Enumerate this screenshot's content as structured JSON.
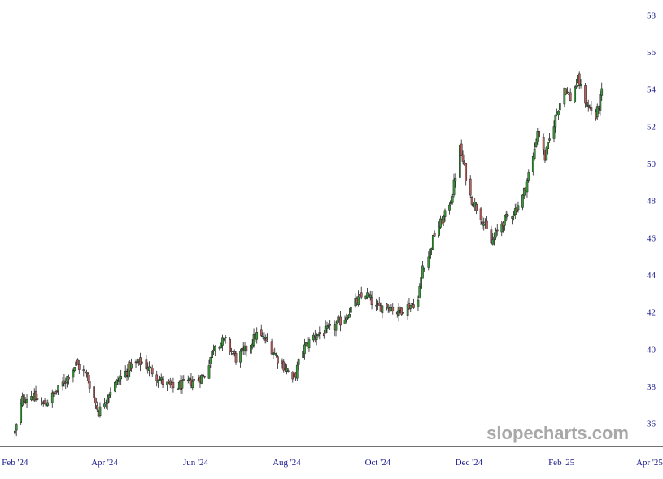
{
  "chart_data": {
    "type": "candlestick",
    "y_axis": {
      "position": "right",
      "range": [
        34.8,
        58.8
      ],
      "ticks": [
        "58",
        "56",
        "54",
        "52",
        "50",
        "48",
        "46",
        "44",
        "42",
        "40",
        "38",
        "36"
      ]
    },
    "x_axis": {
      "range": [
        "2024-01-22",
        "2025-04-10"
      ],
      "ticks": [
        {
          "date": "2024-02-01",
          "label": "Feb '24"
        },
        {
          "date": "2024-04-01",
          "label": "Apr '24"
        },
        {
          "date": "2024-06-01",
          "label": "Jun '24"
        },
        {
          "date": "2024-08-01",
          "label": "Aug '24"
        },
        {
          "date": "2024-10-01",
          "label": "Oct '24"
        },
        {
          "date": "2024-12-01",
          "label": "Dec '24"
        },
        {
          "date": "2025-02-01",
          "label": "Feb '25"
        },
        {
          "date": "2025-04-01",
          "label": "Apr '25"
        }
      ]
    },
    "grid": false,
    "colors": {
      "up": "#3a9a3a",
      "down": "#b86060",
      "axis_text": "#1a1a8c",
      "axis_line": "#444444",
      "wick": "#222222"
    },
    "trend": [
      [
        "2024-02-01",
        35.5
      ],
      [
        "2024-02-06",
        37.3
      ],
      [
        "2024-02-12",
        37.5
      ],
      [
        "2024-02-20",
        37.0
      ],
      [
        "2024-03-01",
        37.8
      ],
      [
        "2024-03-13",
        39.2
      ],
      [
        "2024-03-20",
        38.6
      ],
      [
        "2024-03-28",
        36.6
      ],
      [
        "2024-04-05",
        37.8
      ],
      [
        "2024-04-12",
        38.5
      ],
      [
        "2024-04-19",
        39.1
      ],
      [
        "2024-04-26",
        39.3
      ],
      [
        "2024-05-03",
        38.8
      ],
      [
        "2024-05-10",
        38.2
      ],
      [
        "2024-05-17",
        37.9
      ],
      [
        "2024-05-24",
        38.1
      ],
      [
        "2024-05-31",
        38.3
      ],
      [
        "2024-06-07",
        38.6
      ],
      [
        "2024-06-14",
        40.3
      ],
      [
        "2024-06-21",
        40.4
      ],
      [
        "2024-06-28",
        39.5
      ],
      [
        "2024-07-05",
        40.0
      ],
      [
        "2024-07-12",
        40.8
      ],
      [
        "2024-07-19",
        40.4
      ],
      [
        "2024-07-26",
        39.5
      ],
      [
        "2024-08-02",
        38.8
      ],
      [
        "2024-08-05",
        38.2
      ],
      [
        "2024-08-12",
        40.0
      ],
      [
        "2024-08-19",
        40.7
      ],
      [
        "2024-08-26",
        40.9
      ],
      [
        "2024-09-02",
        41.2
      ],
      [
        "2024-09-09",
        41.7
      ],
      [
        "2024-09-16",
        42.5
      ],
      [
        "2024-09-23",
        43.0
      ],
      [
        "2024-09-30",
        42.2
      ],
      [
        "2024-10-07",
        42.4
      ],
      [
        "2024-10-14",
        42.0
      ],
      [
        "2024-10-21",
        42.3
      ],
      [
        "2024-10-28",
        42.6
      ],
      [
        "2024-10-31",
        44.5
      ],
      [
        "2024-11-04",
        45.0
      ],
      [
        "2024-11-08",
        46.2
      ],
      [
        "2024-11-15",
        47.2
      ],
      [
        "2024-11-20",
        48.4
      ],
      [
        "2024-11-25",
        50.8
      ],
      [
        "2024-12-02",
        48.2
      ],
      [
        "2024-12-09",
        47.2
      ],
      [
        "2024-12-16",
        45.7
      ],
      [
        "2024-12-23",
        46.8
      ],
      [
        "2025-01-01",
        47.5
      ],
      [
        "2025-01-06",
        48.2
      ],
      [
        "2025-01-13",
        50.3
      ],
      [
        "2025-01-16",
        51.8
      ],
      [
        "2025-01-21",
        50.3
      ],
      [
        "2025-01-27",
        52.2
      ],
      [
        "2025-02-03",
        54.1
      ],
      [
        "2025-02-07",
        53.5
      ],
      [
        "2025-02-12",
        54.5
      ],
      [
        "2025-02-18",
        53.2
      ],
      [
        "2025-02-24",
        52.5
      ],
      [
        "2025-02-28",
        53.8
      ]
    ]
  },
  "watermark": "slopecharts.com"
}
